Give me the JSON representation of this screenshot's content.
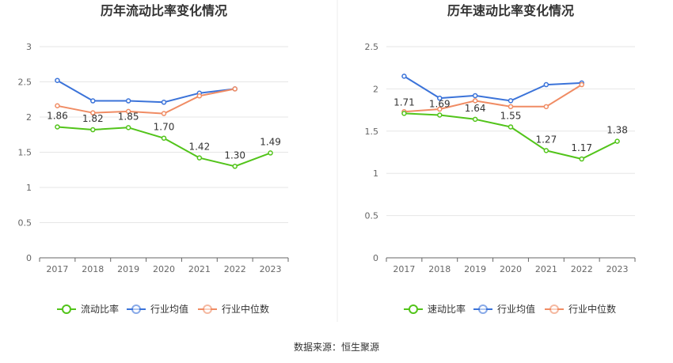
{
  "source_text": "数据来源：恒生聚源",
  "chart_data": [
    {
      "type": "line",
      "title": "历年流动比率变化情况",
      "categories": [
        "2017",
        "2018",
        "2019",
        "2020",
        "2021",
        "2022",
        "2023"
      ],
      "ylim": [
        0,
        3
      ],
      "yticks": [
        "0",
        "0.5",
        "1",
        "1.5",
        "2",
        "2.5",
        "3"
      ],
      "ytick_values": [
        0,
        0.5,
        1,
        1.5,
        2,
        2.5,
        3
      ],
      "grid": true,
      "legend_position": "bottom",
      "series": [
        {
          "name": "流动比率",
          "color": "#52c41a",
          "values": [
            1.86,
            1.82,
            1.85,
            1.7,
            1.42,
            1.3,
            1.49
          ],
          "labels": [
            "1.86",
            "1.82",
            "1.85",
            "1.70",
            "1.42",
            "1.30",
            "1.49"
          ]
        },
        {
          "name": "行业均值",
          "color": "#3b73d9",
          "values": [
            2.52,
            2.23,
            2.23,
            2.21,
            2.34,
            2.4,
            null
          ]
        },
        {
          "name": "行业中位数",
          "color": "#f08c64",
          "values": [
            2.16,
            2.06,
            2.08,
            2.05,
            2.3,
            2.4,
            null
          ]
        }
      ]
    },
    {
      "type": "line",
      "title": "历年速动比率变化情况",
      "categories": [
        "2017",
        "2018",
        "2019",
        "2020",
        "2021",
        "2022",
        "2023"
      ],
      "ylim": [
        0,
        2.5
      ],
      "yticks": [
        "0",
        "0.5",
        "1",
        "1.5",
        "2",
        "2.5"
      ],
      "ytick_values": [
        0,
        0.5,
        1,
        1.5,
        2,
        2.5
      ],
      "grid": true,
      "legend_position": "bottom",
      "series": [
        {
          "name": "速动比率",
          "color": "#52c41a",
          "values": [
            1.71,
            1.69,
            1.64,
            1.55,
            1.27,
            1.17,
            1.38
          ],
          "labels": [
            "1.71",
            "1.69",
            "1.64",
            "1.55",
            "1.27",
            "1.17",
            "1.38"
          ]
        },
        {
          "name": "行业均值",
          "color": "#3b73d9",
          "values": [
            2.15,
            1.89,
            1.92,
            1.86,
            2.05,
            2.07,
            null
          ]
        },
        {
          "name": "行业中位数",
          "color": "#f08c64",
          "values": [
            1.73,
            1.76,
            1.86,
            1.79,
            1.79,
            2.05,
            null
          ]
        }
      ]
    }
  ]
}
